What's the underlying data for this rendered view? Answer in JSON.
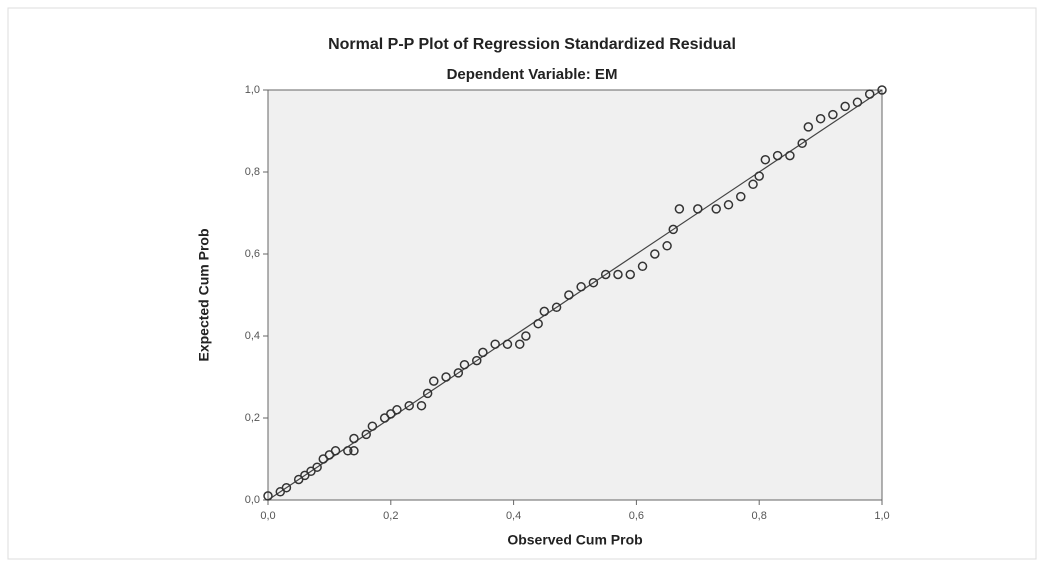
{
  "chart_data": {
    "type": "scatter",
    "title": "Normal P-P Plot of Regression Standardized Residual",
    "subtitle": "Dependent Variable: EM",
    "x_label": "Observed Cum Prob",
    "y_label": "Expected Cum Prob",
    "xlim": [
      0,
      1
    ],
    "ylim": [
      0,
      1
    ],
    "xticks": [
      {
        "value": 0,
        "label": "0,0"
      },
      {
        "value": 0.2,
        "label": "0,2"
      },
      {
        "value": 0.4,
        "label": "0,4"
      },
      {
        "value": 0.6,
        "label": "0,6"
      },
      {
        "value": 0.8,
        "label": "0,8"
      },
      {
        "value": 1,
        "label": "1,0"
      }
    ],
    "yticks": [
      {
        "value": 0,
        "label": "0,0"
      },
      {
        "value": 0.2,
        "label": "0,2"
      },
      {
        "value": 0.4,
        "label": "0,4"
      },
      {
        "value": 0.6,
        "label": "0,6"
      },
      {
        "value": 0.8,
        "label": "0,8"
      },
      {
        "value": 1,
        "label": "1,0"
      }
    ],
    "color": "#333333",
    "background": "#f0f0f0",
    "x": [
      0.0,
      0.02,
      0.03,
      0.05,
      0.06,
      0.07,
      0.08,
      0.09,
      0.1,
      0.11,
      0.13,
      0.14,
      0.14,
      0.16,
      0.17,
      0.19,
      0.2,
      0.21,
      0.23,
      0.25,
      0.26,
      0.27,
      0.29,
      0.31,
      0.32,
      0.34,
      0.35,
      0.37,
      0.39,
      0.41,
      0.42,
      0.44,
      0.45,
      0.47,
      0.49,
      0.51,
      0.53,
      0.55,
      0.57,
      0.59,
      0.61,
      0.63,
      0.65,
      0.66,
      0.67,
      0.7,
      0.73,
      0.75,
      0.77,
      0.79,
      0.8,
      0.81,
      0.83,
      0.85,
      0.87,
      0.88,
      0.9,
      0.92,
      0.94,
      0.96,
      0.98,
      1.0
    ],
    "values": [
      0.01,
      0.02,
      0.03,
      0.05,
      0.06,
      0.07,
      0.08,
      0.1,
      0.11,
      0.12,
      0.12,
      0.12,
      0.15,
      0.16,
      0.18,
      0.2,
      0.21,
      0.22,
      0.23,
      0.23,
      0.26,
      0.29,
      0.3,
      0.31,
      0.33,
      0.34,
      0.36,
      0.38,
      0.38,
      0.38,
      0.4,
      0.43,
      0.46,
      0.47,
      0.5,
      0.52,
      0.53,
      0.55,
      0.55,
      0.55,
      0.57,
      0.6,
      0.62,
      0.66,
      0.71,
      0.71,
      0.71,
      0.72,
      0.74,
      0.77,
      0.79,
      0.83,
      0.84,
      0.84,
      0.87,
      0.91,
      0.93,
      0.94,
      0.96,
      0.97,
      0.99,
      1.0
    ]
  }
}
